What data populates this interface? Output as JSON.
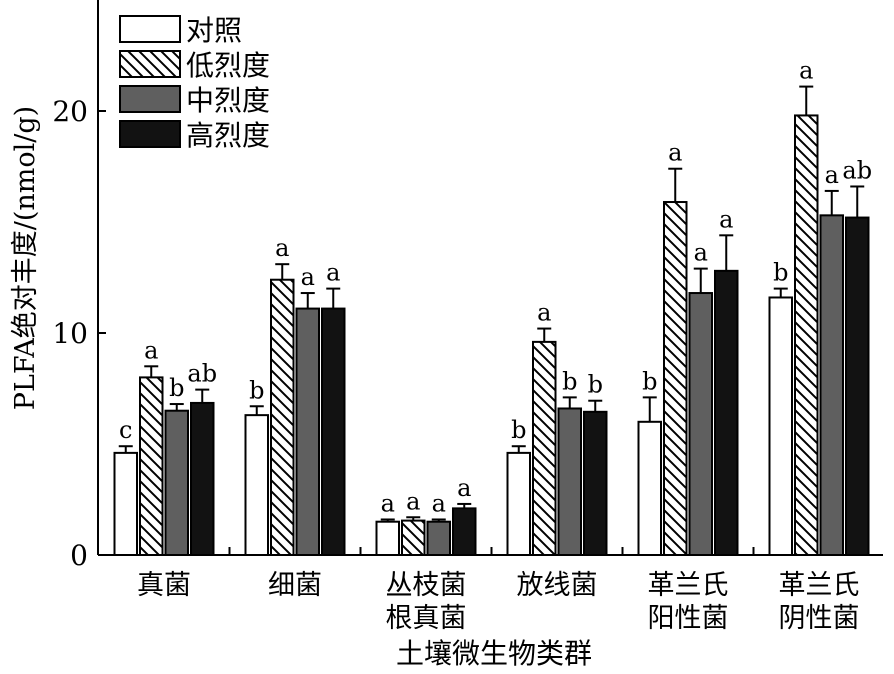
{
  "chart_data": {
    "type": "bar",
    "xlabel": "土壤微生物类群",
    "ylabel": "PLFA绝对丰度/(nmol/g)",
    "ylim": [
      0,
      24.8
    ],
    "yticks": [
      0,
      10,
      20
    ],
    "grid": false,
    "legend_position": "top-left",
    "categories": [
      [
        "真菌"
      ],
      [
        "细菌"
      ],
      [
        "丛枝菌",
        "根真菌"
      ],
      [
        "放线菌"
      ],
      [
        "革兰氏",
        "阳性菌"
      ],
      [
        "革兰氏",
        "阴性菌"
      ]
    ],
    "series": [
      {
        "name": "对照",
        "pattern": "white",
        "values": [
          4.6,
          6.3,
          1.5,
          4.6,
          6.0,
          11.6
        ],
        "errors": [
          0.3,
          0.4,
          0.1,
          0.3,
          1.1,
          0.4
        ],
        "letters": [
          "c",
          "b",
          "a",
          "b",
          "b",
          "b"
        ]
      },
      {
        "name": "低烈度",
        "pattern": "hatch",
        "values": [
          8.0,
          12.4,
          1.55,
          9.6,
          15.9,
          19.8
        ],
        "errors": [
          0.5,
          0.7,
          0.15,
          0.6,
          1.5,
          1.3
        ],
        "letters": [
          "a",
          "a",
          "a",
          "a",
          "a",
          "a"
        ]
      },
      {
        "name": "中烈度",
        "pattern": "gray",
        "values": [
          6.5,
          11.1,
          1.5,
          6.6,
          11.8,
          15.3
        ],
        "errors": [
          0.3,
          0.7,
          0.1,
          0.5,
          1.1,
          1.1
        ],
        "letters": [
          "b",
          "a",
          "a",
          "b",
          "a",
          "a"
        ]
      },
      {
        "name": "高烈度",
        "pattern": "black",
        "values": [
          6.85,
          11.1,
          2.1,
          6.45,
          12.8,
          15.2
        ],
        "errors": [
          0.6,
          0.9,
          0.2,
          0.5,
          1.6,
          1.4
        ],
        "letters": [
          "ab",
          "a",
          "a",
          "b",
          "a",
          "ab"
        ]
      }
    ]
  },
  "colors": {
    "axis": "#000000",
    "white_fill": "#ffffff",
    "gray_fill": "#5f5f5f",
    "black_fill": "#121212",
    "hatch_stroke": "#000000"
  }
}
